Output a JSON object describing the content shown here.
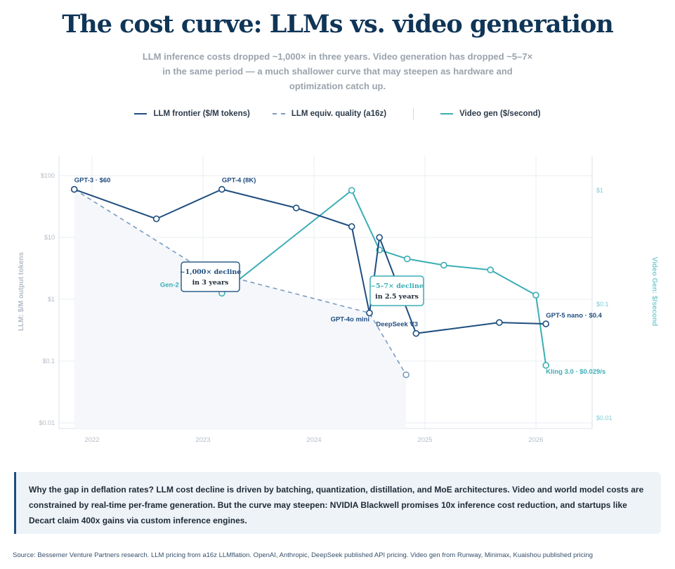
{
  "header": {
    "title": "The cost curve: LLMs vs. video generation",
    "subtitle": "LLM inference costs dropped ~1,000× in three years. Video generation has dropped ~5–7× in the same period — a much shallower curve that may steepen as hardware and optimization catch up."
  },
  "colors": {
    "llm": "#1f4e7f",
    "llm_equiv": "#7a9cc0",
    "video": "#3aaeb5",
    "title": "#0f3557"
  },
  "chart_data": {
    "type": "line",
    "legend_placement": "top",
    "grid": true,
    "x_ticks": [
      "2022",
      "2023",
      "2024",
      "2025",
      "2026"
    ],
    "xlim": [
      2021.7,
      2026.5
    ],
    "left_axis": {
      "label": "LLM: $/M output tokens",
      "scale": "log",
      "ylim": [
        0.01,
        100
      ],
      "ticks": [
        "$100",
        "$10",
        "$1",
        "$0.1",
        "$0.01"
      ],
      "tick_values": [
        100,
        10,
        1,
        0.1,
        0.01
      ]
    },
    "right_axis": {
      "label": "Video Gen: $/second",
      "scale": "log",
      "ylim": [
        0.01,
        1
      ],
      "ticks": [
        "$1",
        "$0.1",
        "$0.01"
      ],
      "tick_values": [
        1,
        0.1,
        0.01
      ]
    },
    "series": [
      {
        "name": "LLM frontier ($/M tokens)",
        "axis": "left",
        "style": "solid",
        "x": [
          2021.84,
          2022.58,
          2023.17,
          2023.84,
          2024.34,
          2024.5,
          2024.59,
          2024.92,
          2025.67,
          2026.09
        ],
        "y": [
          60,
          20,
          60,
          30,
          15,
          0.6,
          10,
          0.28,
          0.42,
          0.4
        ]
      },
      {
        "name": "LLM equiv. quality (a16z)",
        "axis": "left",
        "style": "dashed",
        "x": [
          2021.84,
          2023.0,
          2024.5,
          2024.83
        ],
        "y": [
          60,
          3,
          0.6,
          0.06
        ]
      },
      {
        "name": "Video gen ($/second)",
        "axis": "right",
        "style": "solid",
        "x": [
          2023.17,
          2024.34,
          2024.59,
          2024.84,
          2025.17,
          2025.59,
          2026.0,
          2026.09
        ],
        "y": [
          0.125,
          1.0,
          0.3,
          0.25,
          0.22,
          0.2,
          0.12,
          0.029
        ]
      }
    ],
    "point_labels": [
      {
        "text": "GPT-3 · $60",
        "series": 0,
        "index": 0
      },
      {
        "text": "GPT-4 (8K)",
        "series": 0,
        "index": 2
      },
      {
        "text": "GPT-4o mini",
        "series": 0,
        "index": 5
      },
      {
        "text": "DeepSeek V3",
        "series": 0,
        "index": 7
      },
      {
        "text": "GPT-5 nano · $0.4",
        "series": 0,
        "index": 9
      },
      {
        "text": "Gen-2 (",
        "series": 2,
        "index": 0
      },
      {
        "text": "Kling 3.0 · $0.029/s",
        "series": 2,
        "index": 7
      }
    ],
    "annotations": [
      {
        "line1": "~1,000× decline",
        "line2": "in 3 years"
      },
      {
        "line1": "~5–7× decline",
        "line2": "in 2.5 years"
      }
    ]
  },
  "callout": {
    "text": "Why the gap in deflation rates? LLM cost decline is driven by batching, quantization, distillation, and MoE architectures. Video and world model costs are constrained by real-time per-frame generation. But the curve may steepen: NVIDIA Blackwell promises 10x inference cost reduction, and startups like Decart claim 400x gains via custom inference engines."
  },
  "source": "Source: Bessemer Venture Partners research. LLM pricing from a16z LLMflation. OpenAI, Anthropic, DeepSeek published API pricing. Video gen from Runway, Minimax, Kuaishou published pricing"
}
